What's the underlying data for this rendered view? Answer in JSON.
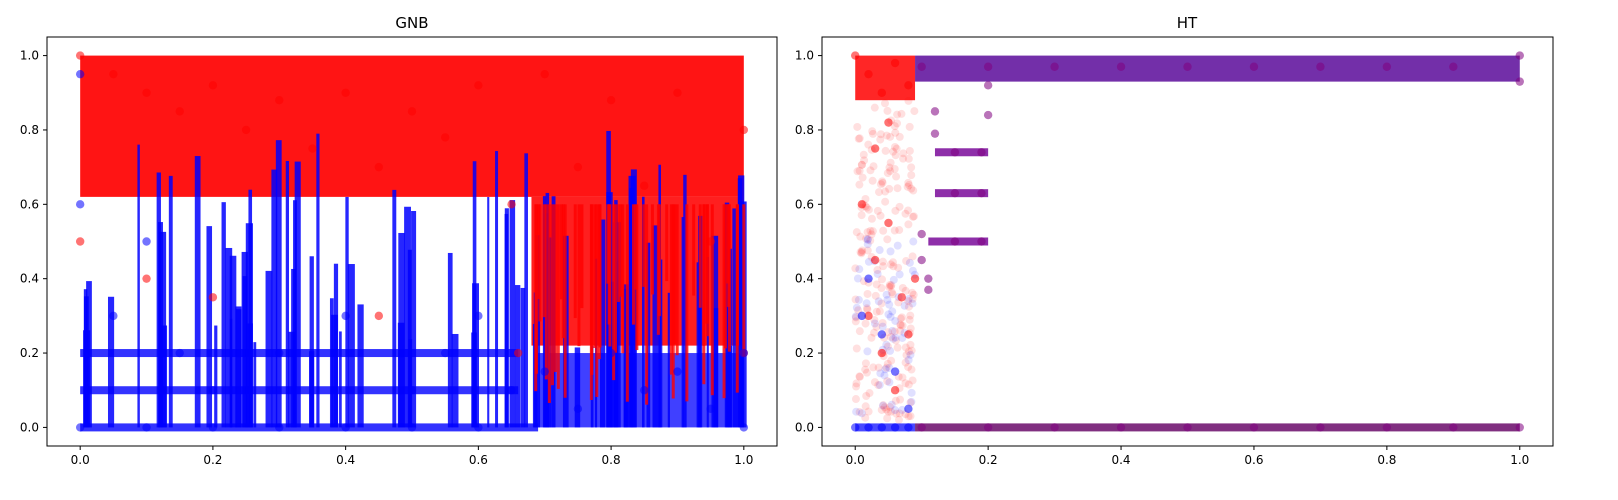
{
  "chart_data": [
    {
      "type": "scatter",
      "title": "GNB",
      "xlabel": "",
      "ylabel": "",
      "xlim": [
        -0.05,
        1.05
      ],
      "ylim": [
        -0.05,
        1.05
      ],
      "x_ticks": [
        "0.0",
        "0.2",
        "0.4",
        "0.6",
        "0.8",
        "1.0"
      ],
      "y_ticks": [
        "0.0",
        "0.2",
        "0.4",
        "0.6",
        "0.8",
        "1.0"
      ],
      "grid": false,
      "series": [
        {
          "color": "#ff0000",
          "points": [
            [
              0.0,
              1.0
            ],
            [
              0.05,
              0.95
            ],
            [
              0.1,
              0.9
            ],
            [
              0.15,
              0.85
            ],
            [
              0.2,
              0.92
            ],
            [
              0.25,
              0.8
            ],
            [
              0.3,
              0.88
            ],
            [
              0.35,
              0.75
            ],
            [
              0.4,
              0.9
            ],
            [
              0.45,
              0.7
            ],
            [
              0.5,
              0.85
            ],
            [
              0.55,
              0.78
            ],
            [
              0.6,
              0.92
            ],
            [
              0.65,
              0.6
            ],
            [
              0.7,
              0.95
            ],
            [
              0.75,
              0.7
            ],
            [
              0.8,
              0.88
            ],
            [
              0.85,
              0.65
            ],
            [
              0.9,
              0.9
            ],
            [
              0.95,
              0.5
            ],
            [
              1.0,
              0.8
            ],
            [
              0.0,
              0.5
            ],
            [
              0.1,
              0.4
            ],
            [
              0.2,
              0.35
            ],
            [
              0.45,
              0.3
            ],
            [
              0.66,
              0.2
            ],
            [
              1.0,
              0.2
            ]
          ]
        },
        {
          "color": "#0000ff",
          "points": [
            [
              0.0,
              0.0
            ],
            [
              0.1,
              0.0
            ],
            [
              0.2,
              0.0
            ],
            [
              0.3,
              0.0
            ],
            [
              0.4,
              0.0
            ],
            [
              0.5,
              0.0
            ],
            [
              0.6,
              0.0
            ],
            [
              0.0,
              0.95
            ],
            [
              0.0,
              0.6
            ],
            [
              0.05,
              0.3
            ],
            [
              0.1,
              0.5
            ],
            [
              0.15,
              0.2
            ],
            [
              0.2,
              0.1
            ],
            [
              0.3,
              0.2
            ],
            [
              0.4,
              0.3
            ],
            [
              0.5,
              0.1
            ],
            [
              0.55,
              0.2
            ],
            [
              0.6,
              0.3
            ],
            [
              0.65,
              0.1
            ],
            [
              0.7,
              0.15
            ],
            [
              0.75,
              0.05
            ],
            [
              0.8,
              0.2
            ],
            [
              0.85,
              0.1
            ],
            [
              0.9,
              0.15
            ],
            [
              0.95,
              0.05
            ],
            [
              1.0,
              0.2
            ],
            [
              1.0,
              0.0
            ]
          ]
        }
      ]
    },
    {
      "type": "scatter",
      "title": "HT",
      "xlabel": "",
      "ylabel": "",
      "xlim": [
        -0.05,
        1.05
      ],
      "ylim": [
        -0.05,
        1.05
      ],
      "x_ticks": [
        "0.0",
        "0.2",
        "0.4",
        "0.6",
        "0.8",
        "1.0"
      ],
      "y_ticks": [
        "0.0",
        "0.2",
        "0.4",
        "0.6",
        "0.8",
        "1.0"
      ],
      "grid": false,
      "series": [
        {
          "color": "#ff0000",
          "points": [
            [
              0.0,
              1.0
            ],
            [
              0.02,
              0.95
            ],
            [
              0.04,
              0.9
            ],
            [
              0.06,
              0.98
            ],
            [
              0.08,
              0.92
            ],
            [
              0.01,
              0.6
            ],
            [
              0.02,
              0.3
            ],
            [
              0.03,
              0.45
            ],
            [
              0.04,
              0.2
            ],
            [
              0.05,
              0.55
            ],
            [
              0.06,
              0.1
            ],
            [
              0.07,
              0.35
            ],
            [
              0.08,
              0.25
            ],
            [
              0.09,
              0.4
            ],
            [
              0.03,
              0.75
            ],
            [
              0.05,
              0.82
            ]
          ]
        },
        {
          "color": "#0000ff",
          "points": [
            [
              0.0,
              0.0
            ],
            [
              0.02,
              0.0
            ],
            [
              0.04,
              0.0
            ],
            [
              0.06,
              0.0
            ],
            [
              0.08,
              0.0
            ],
            [
              0.02,
              0.4
            ],
            [
              0.04,
              0.25
            ],
            [
              0.06,
              0.15
            ],
            [
              0.08,
              0.05
            ],
            [
              0.01,
              0.3
            ]
          ]
        },
        {
          "color": "#800080",
          "points": [
            [
              0.1,
              0.0
            ],
            [
              0.2,
              0.0
            ],
            [
              0.3,
              0.0
            ],
            [
              0.4,
              0.0
            ],
            [
              0.5,
              0.0
            ],
            [
              0.6,
              0.0
            ],
            [
              0.7,
              0.0
            ],
            [
              0.8,
              0.0
            ],
            [
              0.9,
              0.0
            ],
            [
              1.0,
              0.0
            ],
            [
              0.1,
              0.97
            ],
            [
              0.2,
              0.97
            ],
            [
              0.3,
              0.97
            ],
            [
              0.4,
              0.97
            ],
            [
              0.5,
              0.97
            ],
            [
              0.6,
              0.97
            ],
            [
              0.7,
              0.97
            ],
            [
              0.8,
              0.97
            ],
            [
              0.9,
              0.97
            ],
            [
              1.0,
              1.0
            ],
            [
              1.0,
              0.93
            ],
            [
              0.12,
              0.85
            ],
            [
              0.12,
              0.79
            ],
            [
              0.15,
              0.74
            ],
            [
              0.19,
              0.74
            ],
            [
              0.15,
              0.63
            ],
            [
              0.19,
              0.63
            ],
            [
              0.15,
              0.5
            ],
            [
              0.19,
              0.5
            ],
            [
              0.11,
              0.4
            ],
            [
              0.11,
              0.37
            ],
            [
              0.1,
              0.52
            ],
            [
              0.1,
              0.45
            ],
            [
              0.2,
              0.92
            ],
            [
              0.2,
              0.84
            ]
          ]
        }
      ]
    }
  ]
}
